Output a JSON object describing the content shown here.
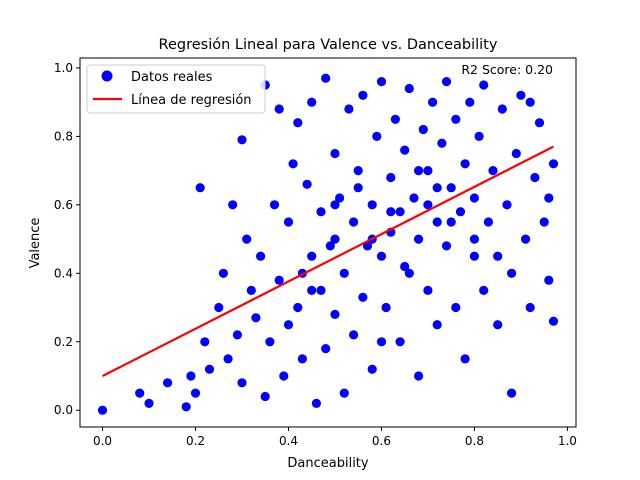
{
  "chart_data": {
    "type": "scatter",
    "title": "Regresión Lineal para Valence vs. Danceability",
    "xlabel": "Danceability",
    "ylabel": "Valence",
    "xlim": [
      -0.0485,
      1.0185
    ],
    "ylim": [
      -0.049,
      1.029
    ],
    "xticks": [
      0.0,
      0.2,
      0.4,
      0.6,
      0.8,
      1.0
    ],
    "xtick_labels": [
      "0.0",
      "0.2",
      "0.4",
      "0.6",
      "0.8",
      "1.0"
    ],
    "yticks": [
      0.0,
      0.2,
      0.4,
      0.6,
      0.8,
      1.0
    ],
    "ytick_labels": [
      "0.0",
      "0.2",
      "0.4",
      "0.6",
      "0.8",
      "1.0"
    ],
    "grid": false,
    "legend": {
      "placement": "top-left",
      "entries": [
        "Datos reales",
        "Línea de regresión"
      ]
    },
    "annotation": "R2 Score: 0.20",
    "series": [
      {
        "name": "Datos reales",
        "kind": "scatter",
        "color": "#0000ff",
        "x": [
          0.0,
          0.08,
          0.1,
          0.14,
          0.18,
          0.19,
          0.2,
          0.21,
          0.22,
          0.23,
          0.25,
          0.26,
          0.27,
          0.28,
          0.29,
          0.3,
          0.3,
          0.31,
          0.32,
          0.33,
          0.34,
          0.35,
          0.35,
          0.36,
          0.37,
          0.38,
          0.38,
          0.39,
          0.4,
          0.4,
          0.41,
          0.42,
          0.42,
          0.43,
          0.44,
          0.45,
          0.45,
          0.46,
          0.47,
          0.47,
          0.48,
          0.48,
          0.49,
          0.5,
          0.5,
          0.51,
          0.52,
          0.52,
          0.53,
          0.54,
          0.54,
          0.55,
          0.56,
          0.56,
          0.57,
          0.58,
          0.58,
          0.59,
          0.6,
          0.6,
          0.61,
          0.62,
          0.62,
          0.63,
          0.64,
          0.64,
          0.65,
          0.66,
          0.66,
          0.67,
          0.68,
          0.68,
          0.69,
          0.7,
          0.7,
          0.71,
          0.72,
          0.72,
          0.73,
          0.74,
          0.74,
          0.75,
          0.76,
          0.76,
          0.77,
          0.78,
          0.78,
          0.79,
          0.8,
          0.8,
          0.81,
          0.82,
          0.82,
          0.83,
          0.84,
          0.85,
          0.86,
          0.87,
          0.88,
          0.89,
          0.9,
          0.91,
          0.92,
          0.93,
          0.94,
          0.95,
          0.96,
          0.97,
          0.35,
          0.97,
          0.96,
          0.92,
          0.88,
          0.5,
          0.43,
          0.6,
          0.7,
          0.55,
          0.65,
          0.75,
          0.8,
          0.85,
          0.45,
          0.5,
          0.62,
          0.68,
          0.58,
          0.72
        ],
        "y": [
          0.0,
          0.05,
          0.02,
          0.08,
          0.01,
          0.1,
          0.05,
          0.65,
          0.2,
          0.12,
          0.3,
          0.4,
          0.15,
          0.6,
          0.22,
          0.79,
          0.08,
          0.5,
          0.35,
          0.27,
          0.45,
          0.95,
          0.04,
          0.2,
          0.6,
          0.38,
          0.88,
          0.1,
          0.55,
          0.25,
          0.72,
          0.3,
          0.84,
          0.15,
          0.66,
          0.45,
          0.9,
          0.02,
          0.35,
          0.58,
          0.97,
          0.18,
          0.48,
          0.75,
          0.28,
          0.62,
          0.05,
          0.4,
          0.88,
          0.55,
          0.22,
          0.7,
          0.33,
          0.92,
          0.48,
          0.6,
          0.12,
          0.8,
          0.45,
          0.96,
          0.3,
          0.68,
          0.52,
          0.85,
          0.2,
          0.58,
          0.76,
          0.4,
          0.94,
          0.62,
          0.1,
          0.5,
          0.82,
          0.7,
          0.35,
          0.9,
          0.55,
          0.25,
          0.78,
          0.48,
          0.96,
          0.65,
          0.3,
          0.85,
          0.58,
          0.15,
          0.72,
          0.9,
          0.45,
          0.62,
          0.8,
          0.35,
          0.95,
          0.55,
          0.7,
          0.25,
          0.88,
          0.6,
          0.4,
          0.75,
          0.92,
          0.5,
          0.3,
          0.68,
          0.84,
          0.55,
          0.38,
          0.72,
          0.95,
          0.26,
          0.62,
          0.9,
          0.05,
          0.5,
          0.4,
          0.2,
          0.6,
          0.65,
          0.42,
          0.55,
          0.5,
          0.45,
          0.35,
          0.6,
          0.58,
          0.7,
          0.5,
          0.65
        ]
      },
      {
        "name": "Línea de regresión",
        "kind": "line",
        "color": "#ff0000",
        "x": [
          0.0,
          0.97
        ],
        "y": [
          0.1,
          0.77
        ]
      }
    ]
  }
}
